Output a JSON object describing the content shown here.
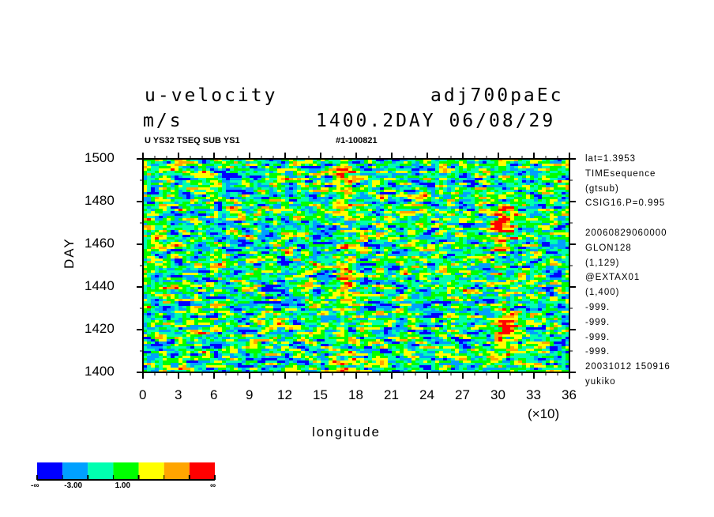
{
  "header": {
    "variable": "u-velocity",
    "experiment": "adj700paEc",
    "units": "m/s",
    "time": "1400.2DAY 06/08/29",
    "subtitle": "U YS32 TSEQ SUB YS1",
    "id": "#1-100821"
  },
  "side_info": [
    "lat=1.3953",
    "TIMEsequence",
    "(gtsub)",
    "CSIG16.P=0.995",
    "",
    "20060829060000",
    "GLON128",
    "(1,129)",
    "@EXTAX01",
    "(1,400)",
    "-999.",
    "-999.",
    "-999.",
    "-999.",
    "20031012 150916",
    "yukiko"
  ],
  "chart_data": {
    "type": "heatmap",
    "title": "u-velocity",
    "xlabel": "longitude",
    "ylabel": "DAY",
    "x_multiplier": "(×10)",
    "xlim": [
      0,
      360
    ],
    "ylim": [
      1400,
      1500
    ],
    "xticks": [
      "0",
      "3",
      "6",
      "9",
      "12",
      "15",
      "18",
      "21",
      "24",
      "27",
      "30",
      "33",
      "36"
    ],
    "yticks": [
      "1400",
      "1420",
      "1440",
      "1460",
      "1480",
      "1500"
    ],
    "levels": [
      "-∞",
      "-3.00",
      "1.00",
      "∞"
    ],
    "colorbar_colors": [
      "#0000ff",
      "#00a0ff",
      "#00ffb0",
      "#00ff00",
      "#ffff00",
      "#ffa500",
      "#ff0000"
    ],
    "strong_westerly_bands_longitude": [
      170,
      305
    ]
  }
}
